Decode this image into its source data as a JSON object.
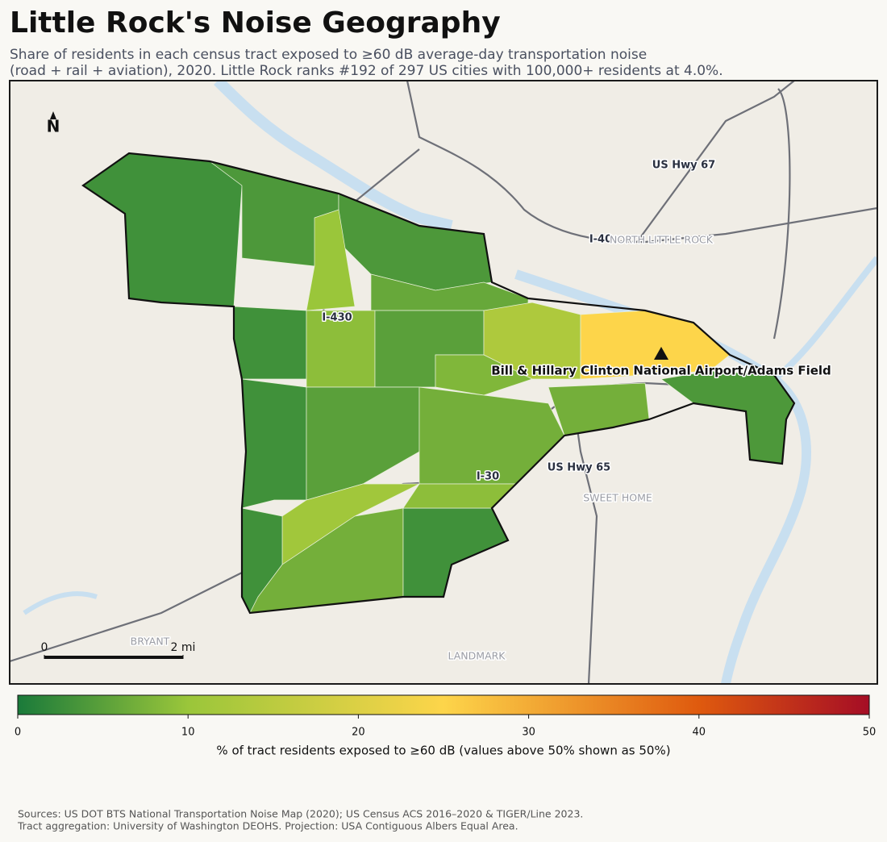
{
  "chart_data": {
    "type": "choropleth",
    "title": "Little Rock's Noise Geography",
    "subtitle": [
      "Share of residents in each census tract exposed to ≥60 dB average-day transportation noise",
      "(road + rail + aviation), 2020. Little Rock ranks #192 of 297 US cities with 100,000+ residents at 4.0%."
    ],
    "values": [
      3,
      4,
      4,
      10,
      6,
      3,
      9,
      5,
      13,
      25,
      8,
      3,
      5,
      7,
      7,
      4,
      11,
      3,
      7,
      3,
      9
    ],
    "colorbar": {
      "label": "% of tract residents exposed to ≥60 dB (values above 50% shown as 50%)",
      "lim": [
        0,
        50
      ],
      "ticks": [
        0,
        10,
        20,
        30,
        40,
        50
      ],
      "stops": [
        {
          "value": 0,
          "color": "#1a7a3a"
        },
        {
          "value": 10,
          "color": "#9ac63a"
        },
        {
          "value": 25,
          "color": "#fdd54a"
        },
        {
          "value": 40,
          "color": "#df5a0e"
        },
        {
          "value": 50,
          "color": "#a50d25"
        }
      ]
    },
    "road_labels": [
      "US Hwy 67",
      "I-40",
      "I-430",
      "I-30",
      "US Hwy 65"
    ],
    "place_labels": [
      "NORTH LITTLE ROCK",
      "SWEET HOME",
      "BRYANT",
      "LANDMARK"
    ],
    "airport": "Bill & Hillary Clinton National Airport/Adams Field",
    "north": "N",
    "scale_ticks": [
      0,
      {
        "value": 2,
        "label": "2 mi"
      }
    ],
    "sources": [
      "Sources: US DOT BTS National Transportation Noise Map (2020); US Census ACS 2016–2020 & TIGER/Line 2023.",
      "Tract aggregation: University of Washington DEOHS. Projection: USA Contiguous Albers Equal Area."
    ]
  }
}
